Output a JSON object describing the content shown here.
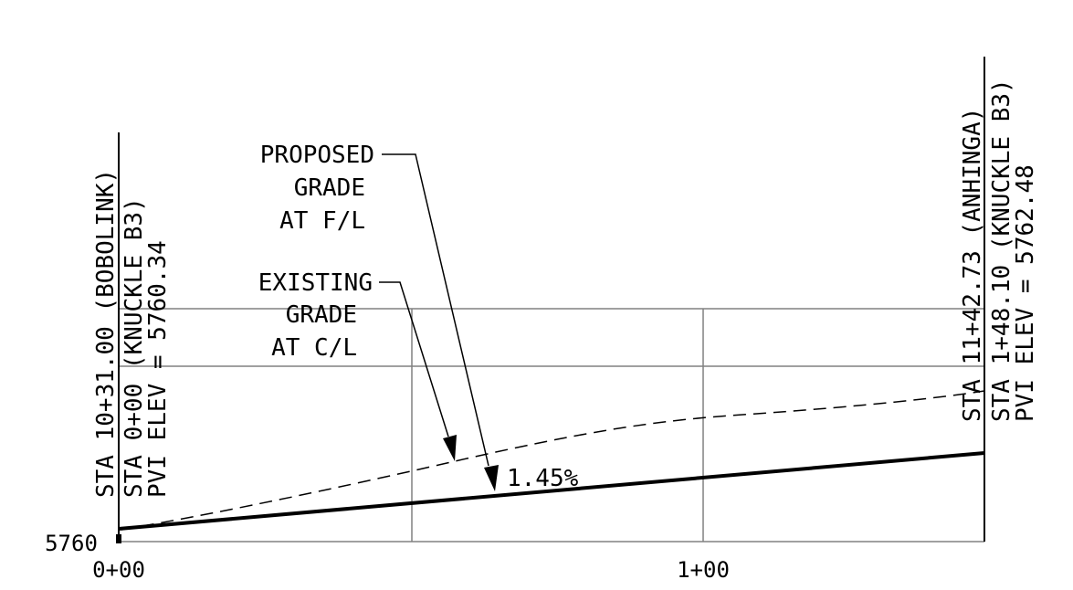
{
  "elevation_label": "5760",
  "stations": [
    {
      "label": "0+00"
    },
    {
      "label": "1+00"
    }
  ],
  "left_annotation": [
    "STA 10+31.00 (BOBOLINK)",
    "STA 0+00 (KNUCKLE B3)",
    "PVI ELEV = 5760.34"
  ],
  "right_annotation": [
    "STA 11+42.73 (ANHINGA)",
    "STA 1+48.10 (KNUCKLE B3)",
    "PVI ELEV = 5762.48"
  ],
  "proposed_grade_callout": [
    "PROPOSED",
    "GRADE",
    "AT F/L"
  ],
  "existing_grade_callout": [
    "EXISTING",
    "GRADE",
    "AT C/L"
  ],
  "grade_label": "1.45%",
  "colors": {
    "line": "#000000",
    "grid": "#808080",
    "background": "#ffffff"
  }
}
